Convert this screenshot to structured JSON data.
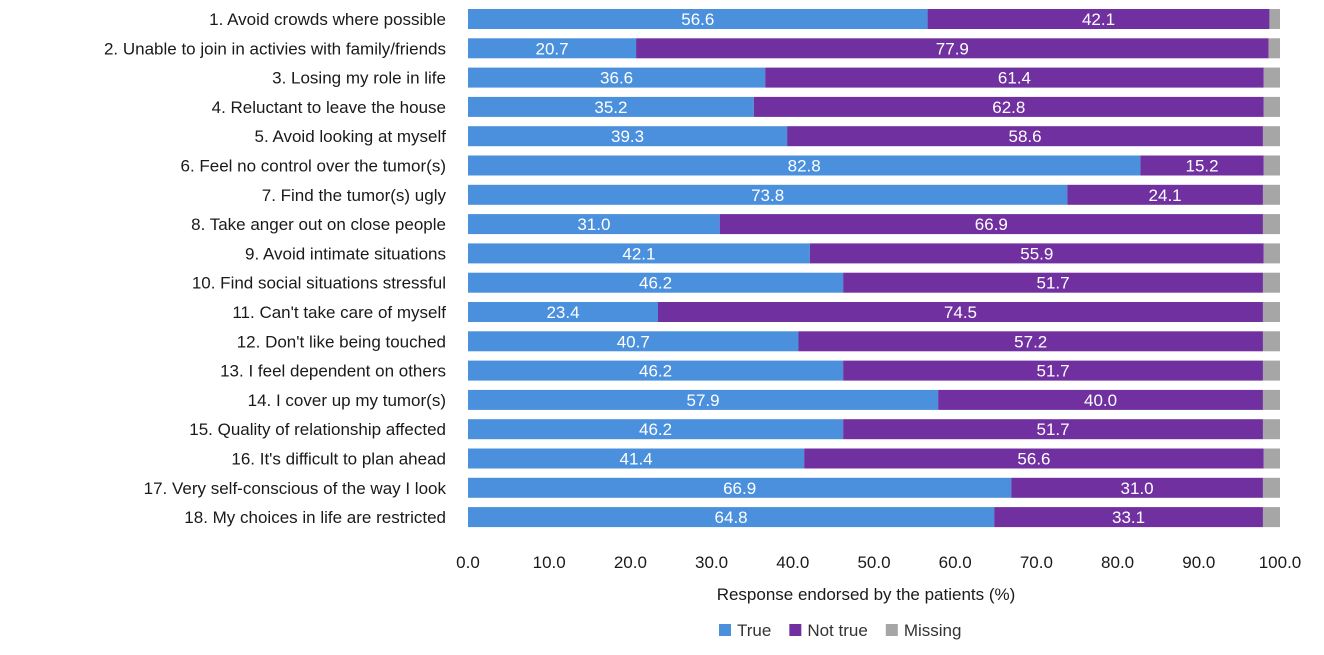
{
  "chart_data": {
    "type": "bar",
    "orientation": "horizontal",
    "stacked": true,
    "categories": [
      "1. Avoid crowds where possible",
      "2. Unable to join in activies with family/friends",
      "3. Losing my role in life",
      "4. Reluctant to leave the house",
      "5. Avoid looking at myself",
      "6. Feel no control over the tumor(s)",
      "7. Find the tumor(s) ugly",
      "8. Take anger out on close people",
      "9. Avoid intimate situations",
      "10. Find social situations stressful",
      "11. Can't take care of myself",
      "12. Don't like being touched",
      "13. I feel dependent on others",
      "14. I cover up my tumor(s)",
      "15. Quality of relationship affected",
      "16. It's difficult to plan ahead",
      "17. Very self-conscious of the way I look",
      "18. My choices in life are restricted"
    ],
    "series": [
      {
        "name": "True",
        "color": "#4a90dc",
        "values": [
          56.6,
          20.7,
          36.6,
          35.2,
          39.3,
          82.8,
          73.8,
          31.0,
          42.1,
          46.2,
          23.4,
          40.7,
          46.2,
          57.9,
          46.2,
          41.4,
          66.9,
          64.8
        ],
        "data_labels": [
          "56.6",
          "20.7",
          "36.6",
          "35.2",
          "39.3",
          "82.8",
          "73.8",
          "31.0",
          "42.1",
          "46.2",
          "23.4",
          "40.7",
          "46.2",
          "57.9",
          "46.2",
          "41.4",
          "66.9",
          "64.8"
        ]
      },
      {
        "name": "Not true",
        "color": "#7030a0",
        "values": [
          42.1,
          77.9,
          61.4,
          62.8,
          58.6,
          15.2,
          24.1,
          66.9,
          55.9,
          51.7,
          74.5,
          57.2,
          51.7,
          40.0,
          51.7,
          56.6,
          31.0,
          33.1
        ],
        "data_labels": [
          "42.1",
          "77.9",
          "61.4",
          "62.8",
          "58.6",
          "15.2",
          "24.1",
          "66.9",
          "55.9",
          "51.7",
          "74.5",
          "57.2",
          "51.7",
          "40.0",
          "51.7",
          "56.6",
          "31.0",
          "33.1"
        ]
      },
      {
        "name": "Missing",
        "color": "#a6a6a6",
        "values": [
          1.3,
          1.4,
          2.0,
          2.0,
          2.1,
          2.0,
          2.1,
          2.1,
          2.0,
          2.1,
          2.1,
          2.1,
          2.1,
          2.1,
          2.1,
          2.0,
          2.1,
          2.1
        ]
      }
    ],
    "xlabel": "Response endorsed by the patients (%)",
    "xlim": [
      0,
      100
    ],
    "xticks": [
      "0.0",
      "10.0",
      "20.0",
      "30.0",
      "40.0",
      "50.0",
      "60.0",
      "70.0",
      "80.0",
      "90.0",
      "100.0"
    ],
    "grid": false,
    "legend_placement": "bottom-center",
    "colors": {
      "label_text": "#1a1a1a",
      "data_label": "#ffffff"
    }
  }
}
